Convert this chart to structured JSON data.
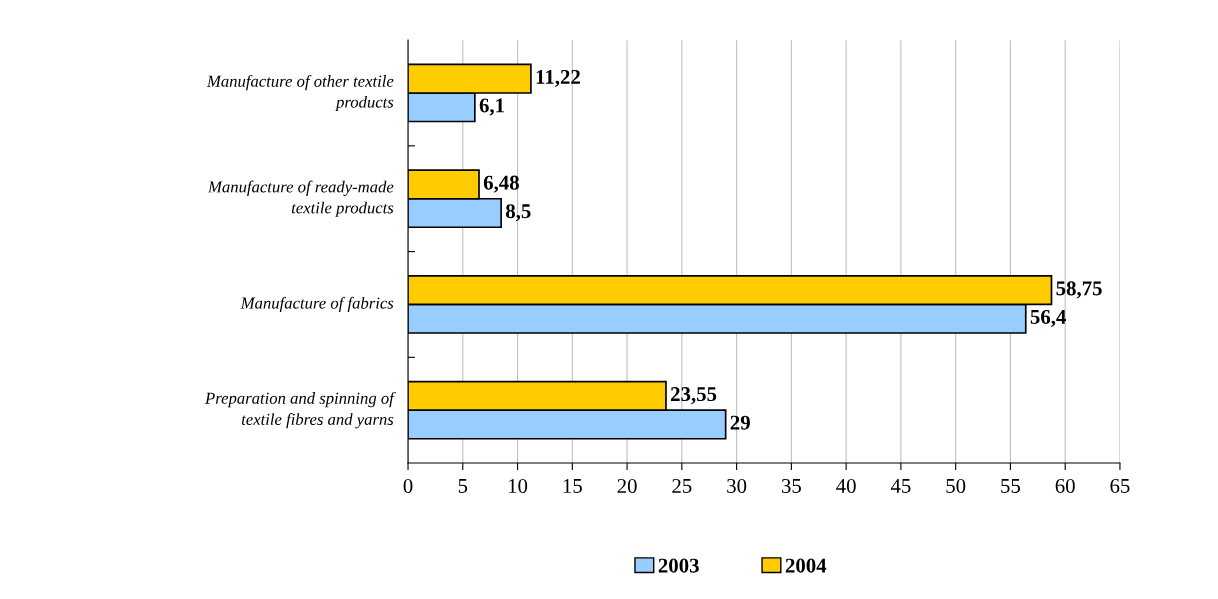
{
  "chart_data": {
    "type": "bar",
    "orientation": "horizontal",
    "categories": [
      "Manufacture of other textile\nproducts",
      "Manufacture of ready-made\ntextile products",
      "Manufacture of fabrics",
      "Preparation and spinning of\ntextile fibres and yarns"
    ],
    "series": [
      {
        "name": "2003",
        "color": "#99ccff",
        "values": [
          6.1,
          8.5,
          56.4,
          29
        ],
        "value_labels": [
          "6,1",
          "8,5",
          "56,4",
          "29"
        ]
      },
      {
        "name": "2004",
        "color": "#ffcc00",
        "values": [
          11.22,
          6.48,
          58.75,
          23.55
        ],
        "value_labels": [
          "11,22",
          "6,48",
          "58,75",
          "23,55"
        ]
      }
    ],
    "xlim": [
      0,
      65
    ],
    "xticks": [
      0,
      5,
      10,
      15,
      20,
      25,
      30,
      35,
      40,
      45,
      50,
      55,
      60,
      65
    ],
    "grid": "x",
    "legend": "bottom"
  }
}
